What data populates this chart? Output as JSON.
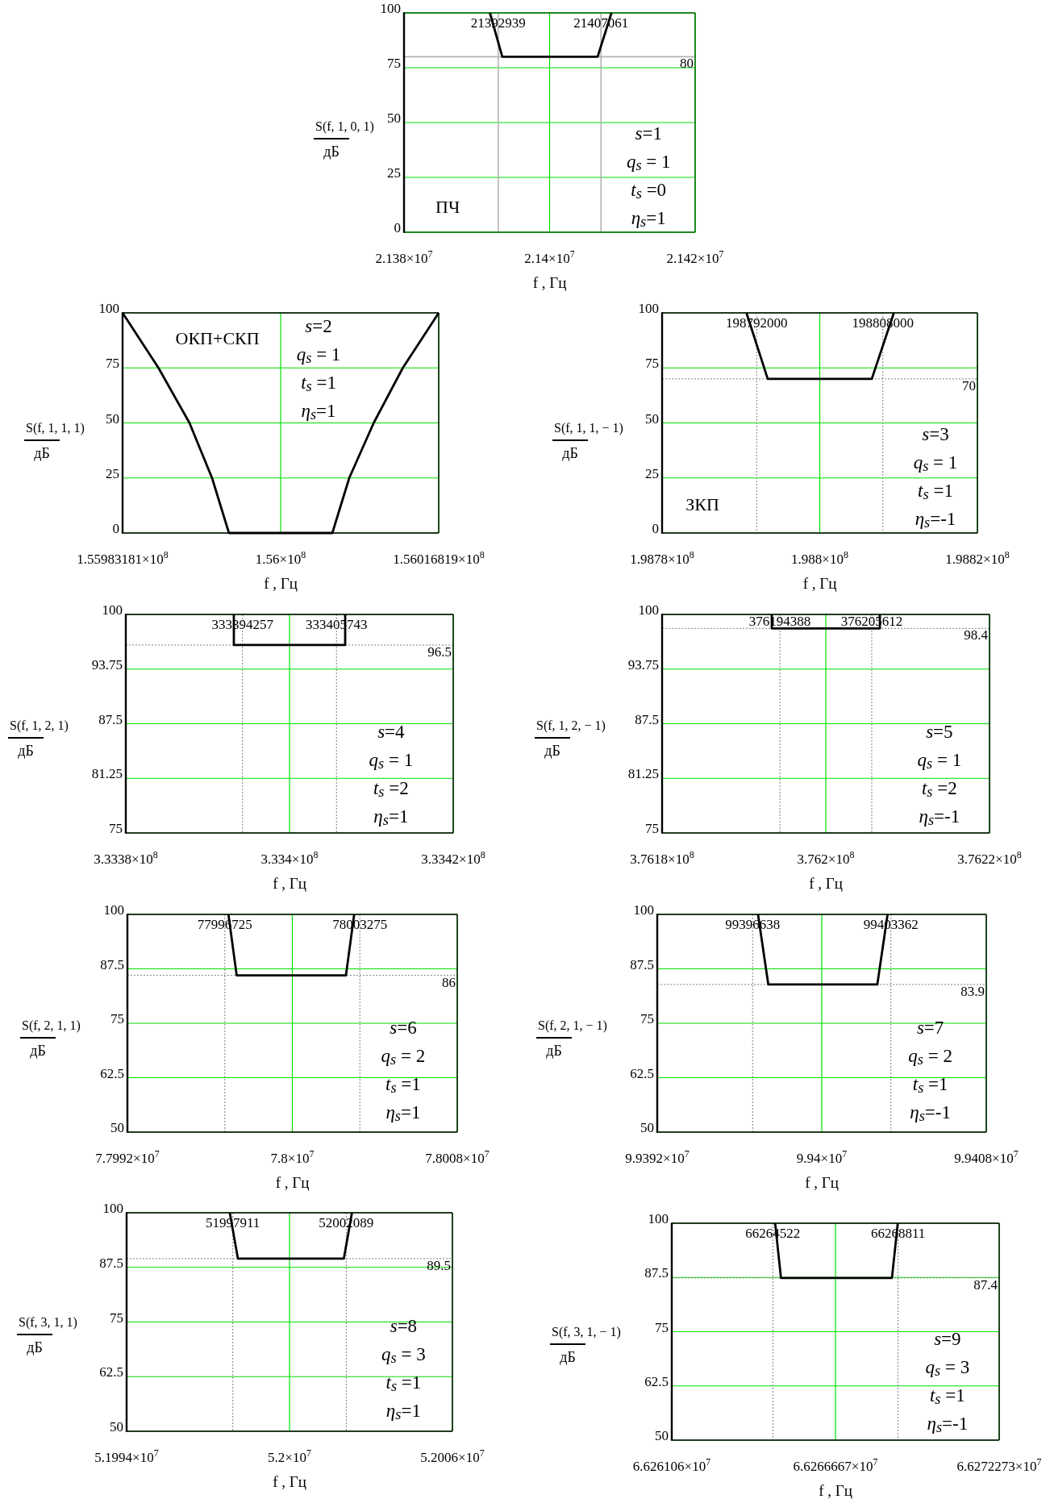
{
  "chart_data": [
    {
      "type": "line",
      "xlabel": "f , Гц",
      "ylabel": "S(f, 1, 0, 1)\nдБ",
      "xlim": [
        21380000,
        21420000
      ],
      "xticks": [
        {
          "value": 21380000,
          "label": "2.138×10$^{7}$"
        },
        {
          "value": 21400000,
          "label": "2.14×10$^{7}$"
        },
        {
          "value": 21420000,
          "label": "2.142×10$^{7}$"
        }
      ],
      "ylim": [
        0,
        100
      ],
      "yticks": [
        0,
        25,
        50,
        75,
        100
      ],
      "grid": true,
      "series": [
        {
          "color": "#000000",
          "x": [
            21391800,
            21393500,
            21406600,
            21408500
          ],
          "values": [
            100,
            80,
            80,
            100
          ]
        }
      ],
      "ref_lines": [
        {
          "axis": "x",
          "value": 21392939,
          "label": "21392939",
          "color": "#b4b4b4"
        },
        {
          "axis": "x",
          "value": 21407061,
          "label": "21407061",
          "color": "#b4b4b4"
        },
        {
          "axis": "y",
          "value": 80,
          "label": "80",
          "color": "#b4b4b4"
        }
      ],
      "annotations": [
        "s=1",
        "q$_{s}$ = 1",
        "t$_{s}$ =0",
        "η$_{s}$=1",
        "ПЧ"
      ]
    },
    {
      "type": "line",
      "xlabel": "f , Гц",
      "ylabel": "S(f, 1, 1, 1)\nдБ",
      "xlim": [
        155983181,
        156016819
      ],
      "xticks": [
        {
          "value": 155983181,
          "label": "1.55983181×10$^{8}$"
        },
        {
          "value": 156000000,
          "label": "1.56×10$^{8}$"
        },
        {
          "value": 156016819,
          "label": "1.56016819×10$^{8}$"
        }
      ],
      "ylim": [
        0,
        100
      ],
      "yticks": [
        0,
        25,
        50,
        75,
        100
      ],
      "grid": true,
      "series": [
        {
          "color": "#000000",
          "x": [
            155983181,
            155987000,
            155990300,
            155992700,
            155994500,
            156005500,
            156007300,
            156009900,
            156013000,
            156016819
          ],
          "values": [
            100,
            75,
            50,
            25,
            0,
            0,
            25,
            50,
            75,
            100
          ]
        }
      ],
      "annotations": [
        "s=2",
        "q$_{s}$ = 1",
        "t$_{s}$ =1",
        "η$_{s}$=1",
        "ОКП+СКП"
      ]
    },
    {
      "type": "line",
      "xlabel": "f , Гц",
      "ylabel": "S(f, 1, 1, − 1)\nдБ",
      "xlim": [
        198780000,
        198820000
      ],
      "xticks": [
        {
          "value": 198780000,
          "label": "1.9878×10$^{8}$"
        },
        {
          "value": 198800000,
          "label": "1.988×10$^{8}$"
        },
        {
          "value": 198820000,
          "label": "1.9882×10$^{8}$"
        }
      ],
      "ylim": [
        0,
        100
      ],
      "yticks": [
        0,
        25,
        50,
        75,
        100
      ],
      "grid": true,
      "series": [
        {
          "color": "#000000",
          "x": [
            198790700,
            198793400,
            198806600,
            198809400
          ],
          "values": [
            100,
            70,
            70,
            100
          ]
        }
      ],
      "ref_lines": [
        {
          "axis": "x",
          "value": 198792000,
          "label": "198792000",
          "color": "#808080",
          "line_style": "dotted"
        },
        {
          "axis": "x",
          "value": 198808000,
          "label": "198808000",
          "color": "#808080",
          "line_style": "dotted"
        },
        {
          "axis": "y",
          "value": 70,
          "label": "70",
          "color": "#808080",
          "line_style": "dotted"
        }
      ],
      "annotations": [
        "s=3",
        "q$_{s}$ = 1",
        "t$_{s}$ =1",
        "η$_{s}$=-1",
        "ЗКП"
      ]
    },
    {
      "type": "line",
      "xlabel": "f , Гц",
      "ylabel": "S(f, 1, 2, 1)\nдБ",
      "xlim": [
        333380000,
        333420000
      ],
      "xticks": [
        {
          "value": 333380000,
          "label": "3.3338×10$^{8}$"
        },
        {
          "value": 333400000,
          "label": "3.334×10$^{8}$"
        },
        {
          "value": 333420000,
          "label": "3.3342×10$^{8}$"
        }
      ],
      "ylim": [
        75,
        100
      ],
      "yticks": [
        75,
        81.25,
        87.5,
        93.75,
        100
      ],
      "grid": true,
      "series": [
        {
          "color": "#000000",
          "x": [
            333393200,
            333393200,
            333406800,
            333406800
          ],
          "values": [
            100,
            96.5,
            96.5,
            100
          ]
        }
      ],
      "ref_lines": [
        {
          "axis": "x",
          "value": 333394257,
          "label": "333394257",
          "color": "#808080",
          "line_style": "dotted"
        },
        {
          "axis": "x",
          "value": 333405743,
          "label": "333405743",
          "color": "#808080",
          "line_style": "dotted"
        },
        {
          "axis": "y",
          "value": 96.5,
          "label": "96.5",
          "color": "#808080",
          "line_style": "dotted"
        }
      ],
      "annotations": [
        "s=4",
        "q$_{s}$ = 1",
        "t$_{s}$ =2",
        "η$_{s}$=1"
      ]
    },
    {
      "type": "line",
      "xlabel": "f , Гц",
      "ylabel": "S(f, 1, 2, − 1)\nдБ",
      "xlim": [
        376180000,
        376220000
      ],
      "xticks": [
        {
          "value": 376180000,
          "label": "3.7618×10$^{8}$"
        },
        {
          "value": 376200000,
          "label": "3.762×10$^{8}$"
        },
        {
          "value": 376220000,
          "label": "3.7622×10$^{8}$"
        }
      ],
      "ylim": [
        75,
        100
      ],
      "yticks": [
        75,
        81.25,
        87.5,
        93.75,
        100
      ],
      "grid": true,
      "series": [
        {
          "color": "#000000",
          "x": [
            376193400,
            376193400,
            376206600,
            376206600
          ],
          "values": [
            100,
            98.4,
            98.4,
            100
          ]
        }
      ],
      "ref_lines": [
        {
          "axis": "x",
          "value": 376194388,
          "label": "376194388",
          "color": "#808080",
          "line_style": "dotted"
        },
        {
          "axis": "x",
          "value": 376205612,
          "label": "376205612",
          "color": "#808080",
          "line_style": "dotted"
        },
        {
          "axis": "y",
          "value": 98.4,
          "label": "98.4",
          "color": "#808080",
          "line_style": "dotted"
        }
      ],
      "annotations": [
        "s=5",
        "q$_{s}$ = 1",
        "t$_{s}$ =2",
        "η$_{s}$=-1"
      ]
    },
    {
      "type": "line",
      "xlabel": "f , Гц",
      "ylabel": "S(f, 2, 1, 1)\nдБ",
      "xlim": [
        77992000,
        78008000
      ],
      "xticks": [
        {
          "value": 77992000,
          "label": "7.7992×10$^{7}$"
        },
        {
          "value": 78000000,
          "label": "7.8×10$^{7}$"
        },
        {
          "value": 78008000,
          "label": "7.8008×10$^{7}$"
        }
      ],
      "ylim": [
        50,
        100
      ],
      "yticks": [
        50,
        62.5,
        75,
        87.5,
        100
      ],
      "grid": true,
      "series": [
        {
          "color": "#000000",
          "x": [
            77996900,
            77997300,
            78002600,
            78003000
          ],
          "values": [
            100,
            86,
            86,
            100
          ]
        }
      ],
      "ref_lines": [
        {
          "axis": "x",
          "value": 77996725,
          "label": "77996725",
          "color": "#808080",
          "line_style": "dotted"
        },
        {
          "axis": "x",
          "value": 78003275,
          "label": "78003275",
          "color": "#808080",
          "line_style": "dotted"
        },
        {
          "axis": "y",
          "value": 86,
          "label": "86",
          "color": "#808080",
          "line_style": "dotted"
        }
      ],
      "annotations": [
        "s=6",
        "q$_{s}$ = 2",
        "t$_{s}$ =1",
        "η$_{s}$=1"
      ]
    },
    {
      "type": "line",
      "xlabel": "f , Гц",
      "ylabel": "S(f, 2, 1, − 1)\nдБ",
      "xlim": [
        99392000,
        99408000
      ],
      "xticks": [
        {
          "value": 99392000,
          "label": "9.9392×10$^{7}$"
        },
        {
          "value": 99400000,
          "label": "9.94×10$^{7}$"
        },
        {
          "value": 99408000,
          "label": "9.9408×10$^{7}$"
        }
      ],
      "ylim": [
        50,
        100
      ],
      "yticks": [
        50,
        62.5,
        75,
        87.5,
        100
      ],
      "grid": true,
      "series": [
        {
          "color": "#000000",
          "x": [
            99396900,
            99397400,
            99402700,
            99403200
          ],
          "values": [
            100,
            83.9,
            83.9,
            100
          ]
        }
      ],
      "ref_lines": [
        {
          "axis": "x",
          "value": 99396638,
          "label": "99396638",
          "color": "#808080",
          "line_style": "dotted"
        },
        {
          "axis": "x",
          "value": 99403362,
          "label": "99403362",
          "color": "#808080",
          "line_style": "dotted"
        },
        {
          "axis": "y",
          "value": 83.9,
          "label": "83.9",
          "color": "#808080",
          "line_style": "dotted"
        }
      ],
      "annotations": [
        "s=7",
        "q$_{s}$ = 2",
        "t$_{s}$ =1",
        "η$_{s}$=-1"
      ]
    },
    {
      "type": "line",
      "xlabel": "f , Гц",
      "ylabel": "S(f, 3, 1, 1)\nдБ",
      "xlim": [
        51994000,
        52006000
      ],
      "xticks": [
        {
          "value": 51994000,
          "label": "5.1994×10$^{7}$"
        },
        {
          "value": 52000000,
          "label": "5.2×10$^{7}$"
        },
        {
          "value": 52006000,
          "label": "5.2006×10$^{7}$"
        }
      ],
      "ylim": [
        50,
        100
      ],
      "yticks": [
        50,
        62.5,
        75,
        87.5,
        100
      ],
      "grid": true,
      "series": [
        {
          "color": "#000000",
          "x": [
            51997800,
            51998100,
            52002000,
            52002300
          ],
          "values": [
            100,
            89.5,
            89.5,
            100
          ]
        }
      ],
      "ref_lines": [
        {
          "axis": "x",
          "value": 51997911,
          "label": "51997911",
          "color": "#808080",
          "line_style": "dotted"
        },
        {
          "axis": "x",
          "value": 52002089,
          "label": "52002089",
          "color": "#808080",
          "line_style": "dotted"
        },
        {
          "axis": "y",
          "value": 89.5,
          "label": "89.5",
          "color": "#808080",
          "line_style": "dotted"
        }
      ],
      "annotations": [
        "s=8",
        "q$_{s}$ = 3",
        "t$_{s}$ =1",
        "η$_{s}$=1"
      ]
    },
    {
      "type": "line",
      "xlabel": "f , Гц",
      "ylabel": "S(f, 3, 1, − 1)\nдБ",
      "xlim": [
        66261060,
        66272273
      ],
      "xticks": [
        {
          "value": 66261060,
          "label": "6.626106×10$^{7}$"
        },
        {
          "value": 66266667,
          "label": "6.6266667×10$^{7}$"
        },
        {
          "value": 66272273,
          "label": "6.6272273×10$^{7}$"
        }
      ],
      "ylim": [
        50,
        100
      ],
      "yticks": [
        50,
        62.5,
        75,
        87.5,
        100
      ],
      "grid": true,
      "series": [
        {
          "color": "#000000",
          "x": [
            66264600,
            66264800,
            66268600,
            66268800
          ],
          "values": [
            100,
            87.4,
            87.4,
            100
          ]
        }
      ],
      "ref_lines": [
        {
          "axis": "x",
          "value": 66264522,
          "label": "66264522",
          "color": "#808080",
          "line_style": "dotted"
        },
        {
          "axis": "x",
          "value": 66268811,
          "label": "66268811",
          "color": "#808080",
          "line_style": "dotted"
        },
        {
          "axis": "y",
          "value": 87.4,
          "label": "87.4",
          "color": "#808080",
          "line_style": "dotted"
        }
      ],
      "annotations": [
        "s=9",
        "q$_{s}$ = 3",
        "t$_{s}$ =1",
        "η$_{s}$=-1"
      ]
    }
  ]
}
